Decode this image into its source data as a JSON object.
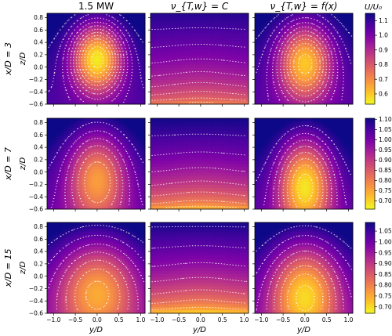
{
  "chart_data": {
    "type": "heatmap",
    "column_titles": [
      "1.5 MW",
      "ν_{T,w} = C",
      "ν_{T,w} = f(x)"
    ],
    "row_labels": [
      "x/D = 3",
      "x/D = 7",
      "x/D = 15"
    ],
    "xlabel": "y/D",
    "ylabel": "z/D",
    "x_ticks": [
      "−1.0",
      "−0.5",
      "0.0",
      "0.5",
      "1.0"
    ],
    "x_tick_values": [
      -1.0,
      -0.5,
      0.0,
      0.5,
      1.0
    ],
    "xlim": [
      -1.15,
      1.1
    ],
    "y_ticks": [
      "−0.6",
      "−0.4",
      "−0.2",
      "0.0",
      "0.2",
      "0.4",
      "0.6",
      "0.8"
    ],
    "y_tick_values": [
      -0.6,
      -0.4,
      -0.2,
      0.0,
      0.2,
      0.4,
      0.6,
      0.8
    ],
    "ylim": [
      -0.6,
      0.87
    ],
    "colorbar_label": "U/U₀",
    "colormap": "plasma_reversed",
    "colorbars": [
      {
        "row": 0,
        "range": [
          0.53,
          1.15
        ],
        "ticks": [
          "0.6",
          "0.7",
          "0.8",
          "0.9",
          "1.0",
          "1.1"
        ],
        "tick_values": [
          0.6,
          0.7,
          0.8,
          0.9,
          1.0,
          1.1
        ]
      },
      {
        "row": 1,
        "range": [
          0.66,
          1.105
        ],
        "ticks": [
          "0.70",
          "0.75",
          "0.80",
          "0.85",
          "0.90",
          "0.95",
          "1.00",
          "1.05",
          "1.10"
        ],
        "tick_values": [
          0.7,
          0.75,
          0.8,
          0.85,
          0.9,
          0.95,
          1.0,
          1.05,
          1.1
        ]
      },
      {
        "row": 2,
        "range": [
          0.67,
          1.09
        ],
        "ticks": [
          "0.70",
          "0.75",
          "0.80",
          "0.85",
          "0.90",
          "0.95",
          "1.00",
          "1.05"
        ],
        "tick_values": [
          0.7,
          0.75,
          0.8,
          0.85,
          0.9,
          0.95,
          1.0,
          1.05
        ]
      }
    ],
    "panels": [
      {
        "row": 0,
        "col": 0,
        "wake": "gaussian",
        "u_min": 0.55,
        "u_max": 1.13,
        "deficit_center_z": 0.12,
        "sigma_y": 0.42,
        "sigma_z": 0.4
      },
      {
        "row": 0,
        "col": 1,
        "wake": "ground",
        "u_min": 0.68,
        "u_max": 1.12
      },
      {
        "row": 0,
        "col": 2,
        "wake": "gaussian",
        "u_min": 0.6,
        "u_max": 1.12,
        "deficit_center_z": 0.05,
        "sigma_y": 0.45,
        "sigma_z": 0.45
      },
      {
        "row": 1,
        "col": 0,
        "wake": "gaussian",
        "u_min": 0.76,
        "u_max": 1.09,
        "deficit_center_z": -0.15,
        "sigma_y": 0.5,
        "sigma_z": 0.55
      },
      {
        "row": 1,
        "col": 1,
        "wake": "ground",
        "u_min": 0.7,
        "u_max": 1.1
      },
      {
        "row": 1,
        "col": 2,
        "wake": "gaussian",
        "u_min": 0.68,
        "u_max": 1.1,
        "deficit_center_z": -0.25,
        "sigma_y": 0.45,
        "sigma_z": 0.55
      },
      {
        "row": 2,
        "col": 0,
        "wake": "gaussian",
        "u_min": 0.75,
        "u_max": 1.08,
        "deficit_center_z": -0.3,
        "sigma_y": 0.7,
        "sigma_z": 0.6
      },
      {
        "row": 2,
        "col": 1,
        "wake": "ground",
        "u_min": 0.68,
        "u_max": 1.08
      },
      {
        "row": 2,
        "col": 2,
        "wake": "gaussian",
        "u_min": 0.7,
        "u_max": 1.08,
        "deficit_center_z": -0.35,
        "sigma_y": 0.6,
        "sigma_z": 0.6
      }
    ],
    "contours": "white dotted",
    "grid": false
  }
}
